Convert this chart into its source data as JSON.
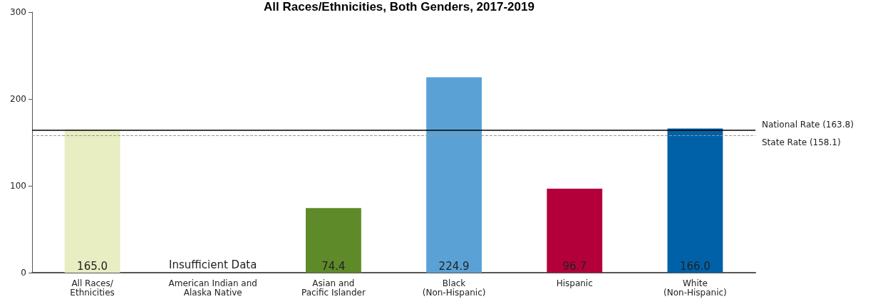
{
  "chart_data": {
    "type": "bar",
    "title": "All Races/Ethnicities, Both Genders, 2017-2019",
    "categories": [
      "All Races/\nEthnicities",
      "American Indian and\nAlaska Native",
      "Asian and\nPacific Islander",
      "Black\n(Non-Hispanic)",
      "Hispanic",
      "White\n(Non-Hispanic)"
    ],
    "values": [
      165.0,
      null,
      74.4,
      224.9,
      96.7,
      166.0
    ],
    "colors": [
      "#e8edc2",
      null,
      "#5f8a2a",
      "#5aa2d6",
      "#b4003a",
      "#0061a8"
    ],
    "value_labels": [
      "165.0",
      "Insufficient Data",
      "74.4",
      "224.9",
      "96.7",
      "166.0"
    ],
    "ylim": [
      0,
      300
    ],
    "yticks": [
      0,
      100,
      200,
      300
    ],
    "grid": false,
    "ref_lines": [
      {
        "axis": "y",
        "value": 163.8,
        "label": "National Rate (163.8)",
        "color": "#000000",
        "line_style": "solid"
      },
      {
        "axis": "y",
        "value": 158.1,
        "label": "State Rate (158.1)",
        "color": "#999999",
        "line_style": "dashed"
      }
    ]
  }
}
